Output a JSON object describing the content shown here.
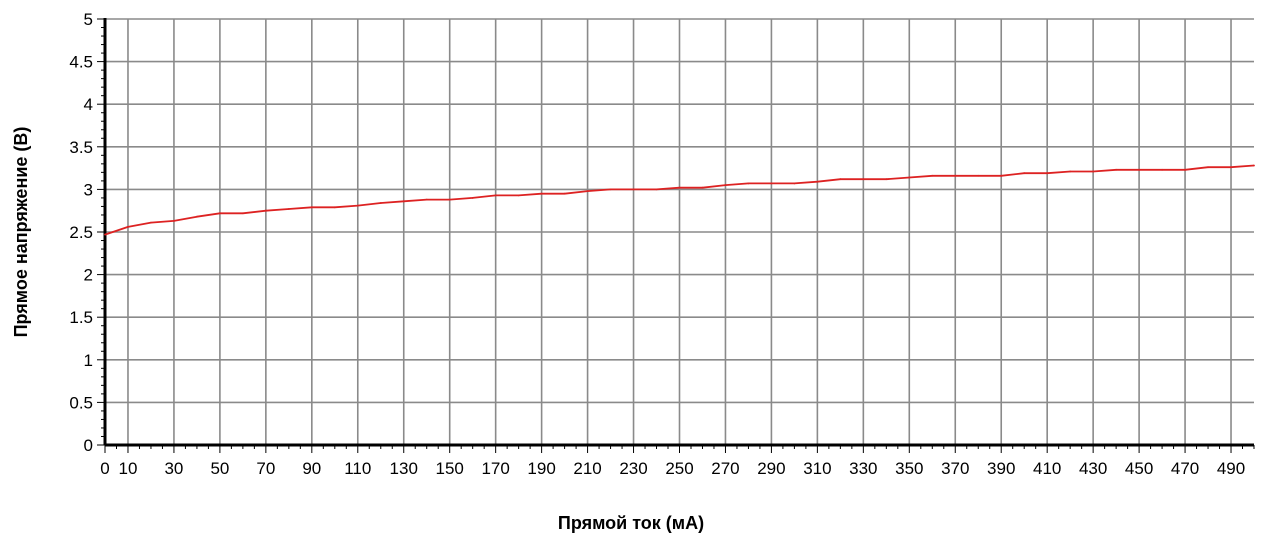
{
  "chart_data": {
    "type": "line",
    "title": "",
    "xlabel": "Прямой ток (мА)",
    "ylabel": "Прямое напряжение (В)",
    "xlim": [
      0,
      500
    ],
    "ylim": [
      0,
      5
    ],
    "x_ticks": [
      0,
      10,
      30,
      50,
      70,
      90,
      110,
      130,
      150,
      170,
      190,
      210,
      230,
      250,
      270,
      290,
      310,
      330,
      350,
      370,
      390,
      410,
      430,
      450,
      470,
      490
    ],
    "y_ticks": [
      0,
      0.5,
      1,
      1.5,
      2,
      2.5,
      3,
      3.5,
      4,
      4.5,
      5
    ],
    "x_tick_labels": [
      "0",
      "10",
      "30",
      "50",
      "70",
      "90",
      "110",
      "130",
      "150",
      "170",
      "190",
      "210",
      "230",
      "250",
      "270",
      "290",
      "310",
      "330",
      "350",
      "370",
      "390",
      "410",
      "430",
      "450",
      "470",
      "490"
    ],
    "y_tick_labels": [
      "0",
      "0.5",
      "1",
      "1.5",
      "2",
      "2.5",
      "3",
      "3.5",
      "4",
      "4.5",
      "5"
    ],
    "grid": true,
    "legend": "none",
    "series": [
      {
        "color": "#dd2222",
        "x": [
          0,
          10,
          20,
          30,
          40,
          50,
          60,
          70,
          80,
          90,
          100,
          110,
          120,
          130,
          140,
          150,
          160,
          170,
          180,
          190,
          200,
          210,
          220,
          230,
          240,
          250,
          260,
          270,
          280,
          290,
          300,
          310,
          320,
          330,
          340,
          350,
          360,
          370,
          380,
          390,
          400,
          410,
          420,
          430,
          440,
          450,
          460,
          470,
          480,
          490,
          500
        ],
        "y": [
          2.47,
          2.56,
          2.61,
          2.63,
          2.68,
          2.72,
          2.72,
          2.75,
          2.77,
          2.79,
          2.79,
          2.81,
          2.84,
          2.86,
          2.88,
          2.88,
          2.9,
          2.93,
          2.93,
          2.95,
          2.95,
          2.98,
          3.0,
          3.0,
          3.0,
          3.02,
          3.02,
          3.05,
          3.07,
          3.07,
          3.07,
          3.09,
          3.12,
          3.12,
          3.12,
          3.14,
          3.16,
          3.16,
          3.16,
          3.16,
          3.19,
          3.19,
          3.21,
          3.21,
          3.23,
          3.23,
          3.23,
          3.23,
          3.26,
          3.26,
          3.28
        ]
      }
    ]
  }
}
